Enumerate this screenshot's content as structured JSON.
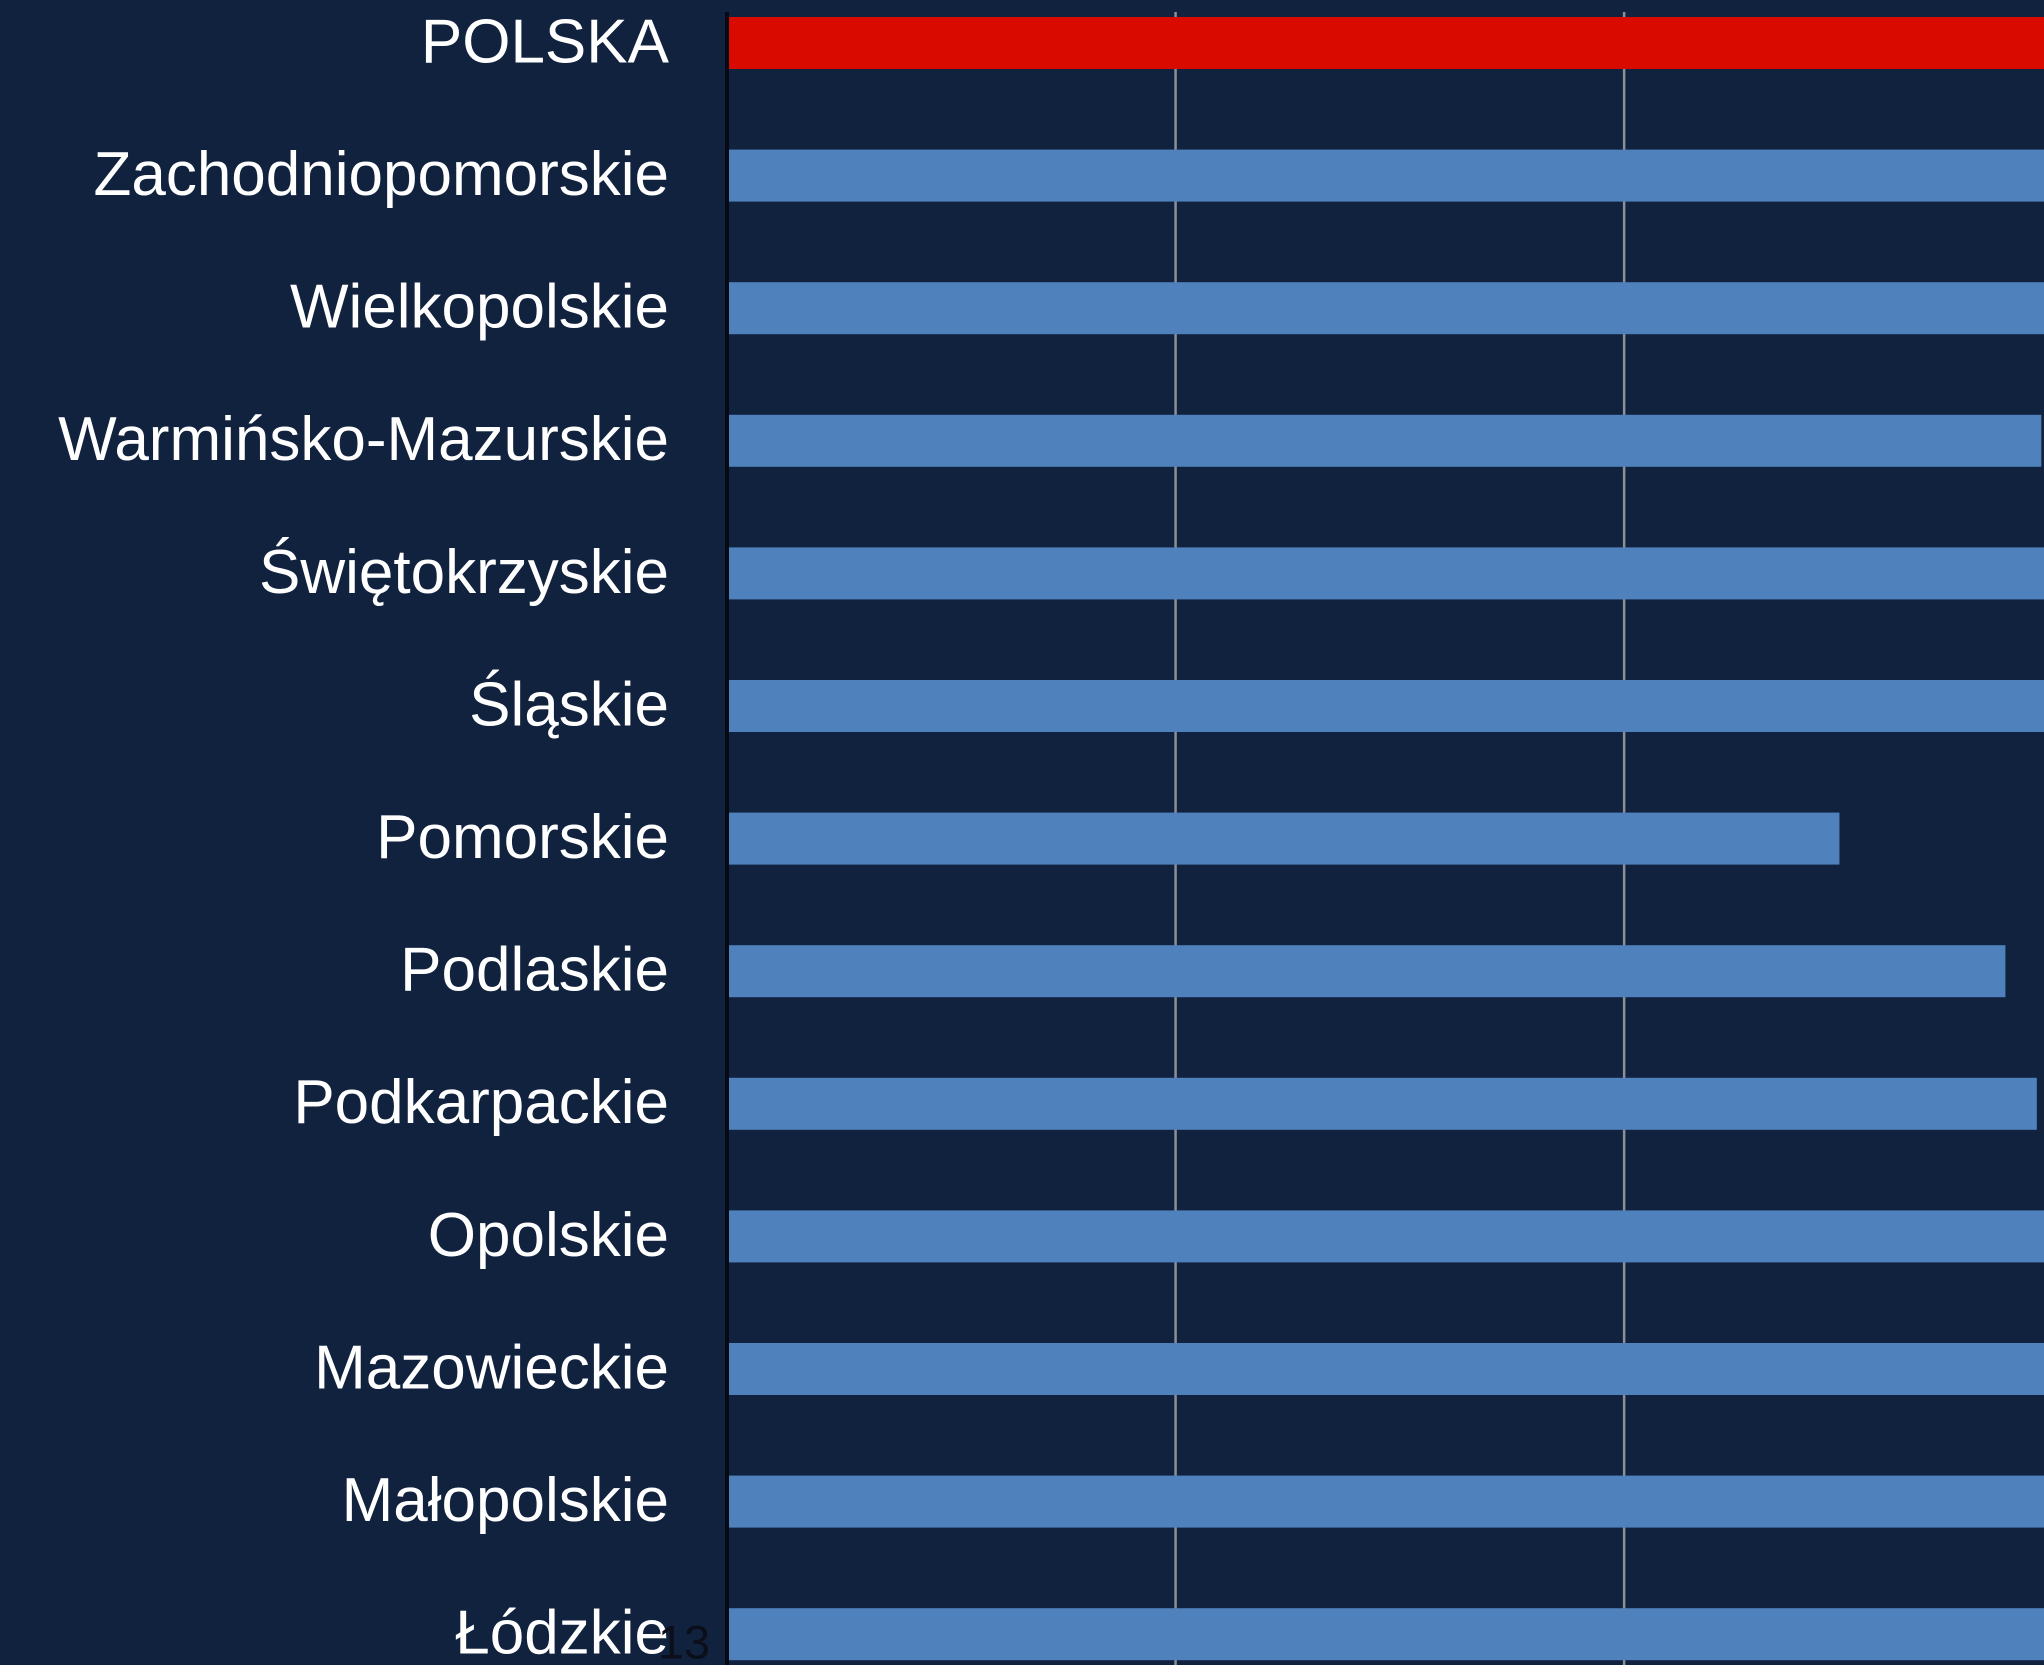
{
  "chart_data": {
    "type": "barh",
    "categories": [
      "POLSKA",
      "Zachodniopomorskie",
      "Wielkopolskie",
      "Warmińsko-Mazurskie",
      "Świętokrzyskie",
      "Śląskie",
      "Pomorskie",
      "Podlaskie",
      "Podkarpackie",
      "Opolskie",
      "Mazowieckie",
      "Małopolskie",
      "Łódzkie"
    ],
    "values": [
      3.0,
      3.0,
      3.0,
      2.93,
      3.0,
      3.0,
      2.48,
      2.85,
      2.92,
      3.0,
      3.0,
      3.0,
      3.0
    ],
    "colors": [
      "#d90a00",
      "#4f81bd",
      "#4f81bd",
      "#4f81bd",
      "#4f81bd",
      "#4f81bd",
      "#4f81bd",
      "#4f81bd",
      "#4f81bd",
      "#4f81bd",
      "#4f81bd",
      "#4f81bd",
      "#4f81bd"
    ],
    "xlim": [
      0,
      2.936
    ],
    "xticks": [
      0,
      1,
      2
    ],
    "grid": true
  },
  "page_number": "13"
}
